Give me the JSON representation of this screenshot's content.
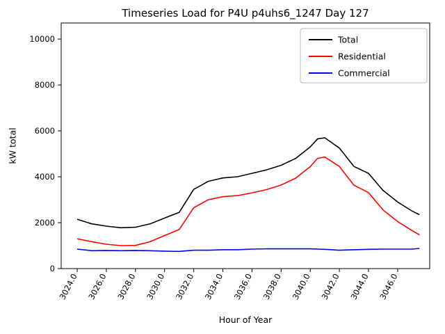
{
  "chart_data": {
    "type": "line",
    "title": "Timeseries Load for P4U p4uhs6_1247  Day 127",
    "xlabel": "Hour of Year",
    "ylabel": "kW total",
    "x": [
      3024,
      3025,
      3026,
      3027,
      3028,
      3029,
      3030,
      3031,
      3032,
      3033,
      3034,
      3035,
      3036,
      3037,
      3038,
      3039,
      3040,
      3040.5,
      3041,
      3042,
      3043,
      3044,
      3045,
      3046,
      3047,
      3047.5
    ],
    "series": [
      {
        "name": "Total",
        "color": "#000000",
        "values": [
          2150,
          1950,
          1850,
          1780,
          1800,
          1950,
          2200,
          2450,
          3450,
          3800,
          3950,
          4000,
          4150,
          4300,
          4500,
          4800,
          5300,
          5650,
          5700,
          5250,
          4450,
          4150,
          3400,
          2900,
          2500,
          2350
        ]
      },
      {
        "name": "Residential",
        "color": "#ff0000",
        "values": [
          1300,
          1170,
          1060,
          1000,
          1010,
          1170,
          1440,
          1700,
          2650,
          3000,
          3130,
          3180,
          3300,
          3440,
          3640,
          3940,
          4440,
          4800,
          4860,
          4450,
          3630,
          3310,
          2550,
          2050,
          1650,
          1470
        ]
      },
      {
        "name": "Commercial",
        "color": "#0000ff",
        "values": [
          850,
          780,
          790,
          780,
          790,
          780,
          760,
          750,
          800,
          800,
          820,
          820,
          850,
          860,
          860,
          860,
          860,
          850,
          840,
          800,
          820,
          840,
          850,
          850,
          850,
          880
        ]
      }
    ],
    "xticks": [
      "3024.0",
      "3026.0",
      "3028.0",
      "3030.0",
      "3032.0",
      "3034.0",
      "3036.0",
      "3038.0",
      "3040.0",
      "3042.0",
      "3044.0",
      "3046.0"
    ],
    "yticks": [
      "0",
      "2000",
      "4000",
      "6000",
      "8000",
      "10000"
    ],
    "xlim": [
      3022.9,
      3048.2
    ],
    "ylim": [
      0,
      10700
    ],
    "legend_position": "upper right",
    "grid": false
  }
}
